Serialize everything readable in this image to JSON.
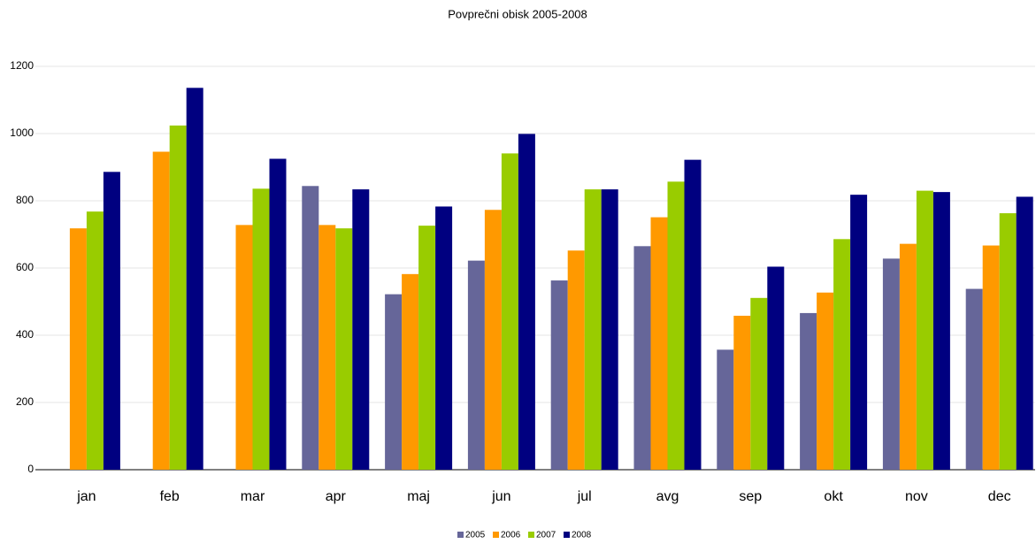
{
  "chart_data": {
    "type": "bar",
    "title": "Povprečni obisk 2005-2008",
    "categories": [
      "jan",
      "feb",
      "mar",
      "apr",
      "maj",
      "jun",
      "jul",
      "avg",
      "sep",
      "okt",
      "nov",
      "dec"
    ],
    "series": [
      {
        "name": "2005",
        "color": "#666699",
        "values": [
          null,
          null,
          null,
          844,
          522,
          622,
          563,
          665,
          357,
          466,
          628,
          538
        ]
      },
      {
        "name": "2006",
        "color": "#ff9900",
        "values": [
          718,
          946,
          728,
          728,
          582,
          773,
          652,
          751,
          458,
          527,
          672,
          667
        ]
      },
      {
        "name": "2007",
        "color": "#99cc00",
        "values": [
          768,
          1024,
          836,
          718,
          726,
          941,
          834,
          857,
          511,
          686,
          830,
          763
        ]
      },
      {
        "name": "2008",
        "color": "#000080",
        "values": [
          886,
          1136,
          925,
          834,
          783,
          999,
          834,
          922,
          604,
          818,
          826,
          812
        ]
      }
    ],
    "ylim": [
      0,
      1200
    ],
    "yticks": [
      0,
      200,
      400,
      600,
      800,
      1000,
      1200
    ],
    "grid": true,
    "legend": "bottom"
  }
}
